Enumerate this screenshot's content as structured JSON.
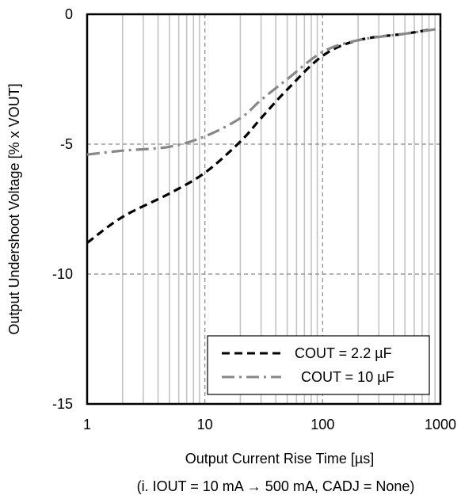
{
  "chart_data": {
    "type": "line",
    "x_scale": "log",
    "xlim": [
      1,
      1000
    ],
    "ylim": [
      -15,
      0
    ],
    "x_ticks": [
      "1",
      "10",
      "100",
      "1000"
    ],
    "y_ticks": [
      "0",
      "-5",
      "-10",
      "-15"
    ],
    "xlabel": "Output Current Rise Time [µs]",
    "xlabel_note": "(i. IOUT = 10 mA → 500 mA, CADJ = None)",
    "ylabel": "Output Undershoot Voltage [% x VOUT]",
    "grid": true,
    "legend_position": "bottom-right",
    "series": [
      {
        "name": "COUT = 2.2 µF",
        "color": "#000000",
        "dash": "dashed",
        "x": [
          1,
          2,
          5,
          10,
          20,
          30,
          50,
          100,
          200,
          500,
          800
        ],
        "y": [
          -8.8,
          -7.8,
          -6.9,
          -6.1,
          -4.9,
          -4.0,
          -2.9,
          -1.6,
          -1.0,
          -0.75,
          -0.6
        ]
      },
      {
        "name": "COUT = 10 µF",
        "color": "#888888",
        "dash": "dash-dot",
        "x": [
          1,
          2,
          5,
          10,
          20,
          30,
          50,
          100,
          200,
          500,
          1000
        ],
        "y": [
          -5.4,
          -5.25,
          -5.1,
          -4.7,
          -4.0,
          -3.3,
          -2.5,
          -1.45,
          -1.0,
          -0.75,
          -0.55
        ]
      }
    ]
  }
}
